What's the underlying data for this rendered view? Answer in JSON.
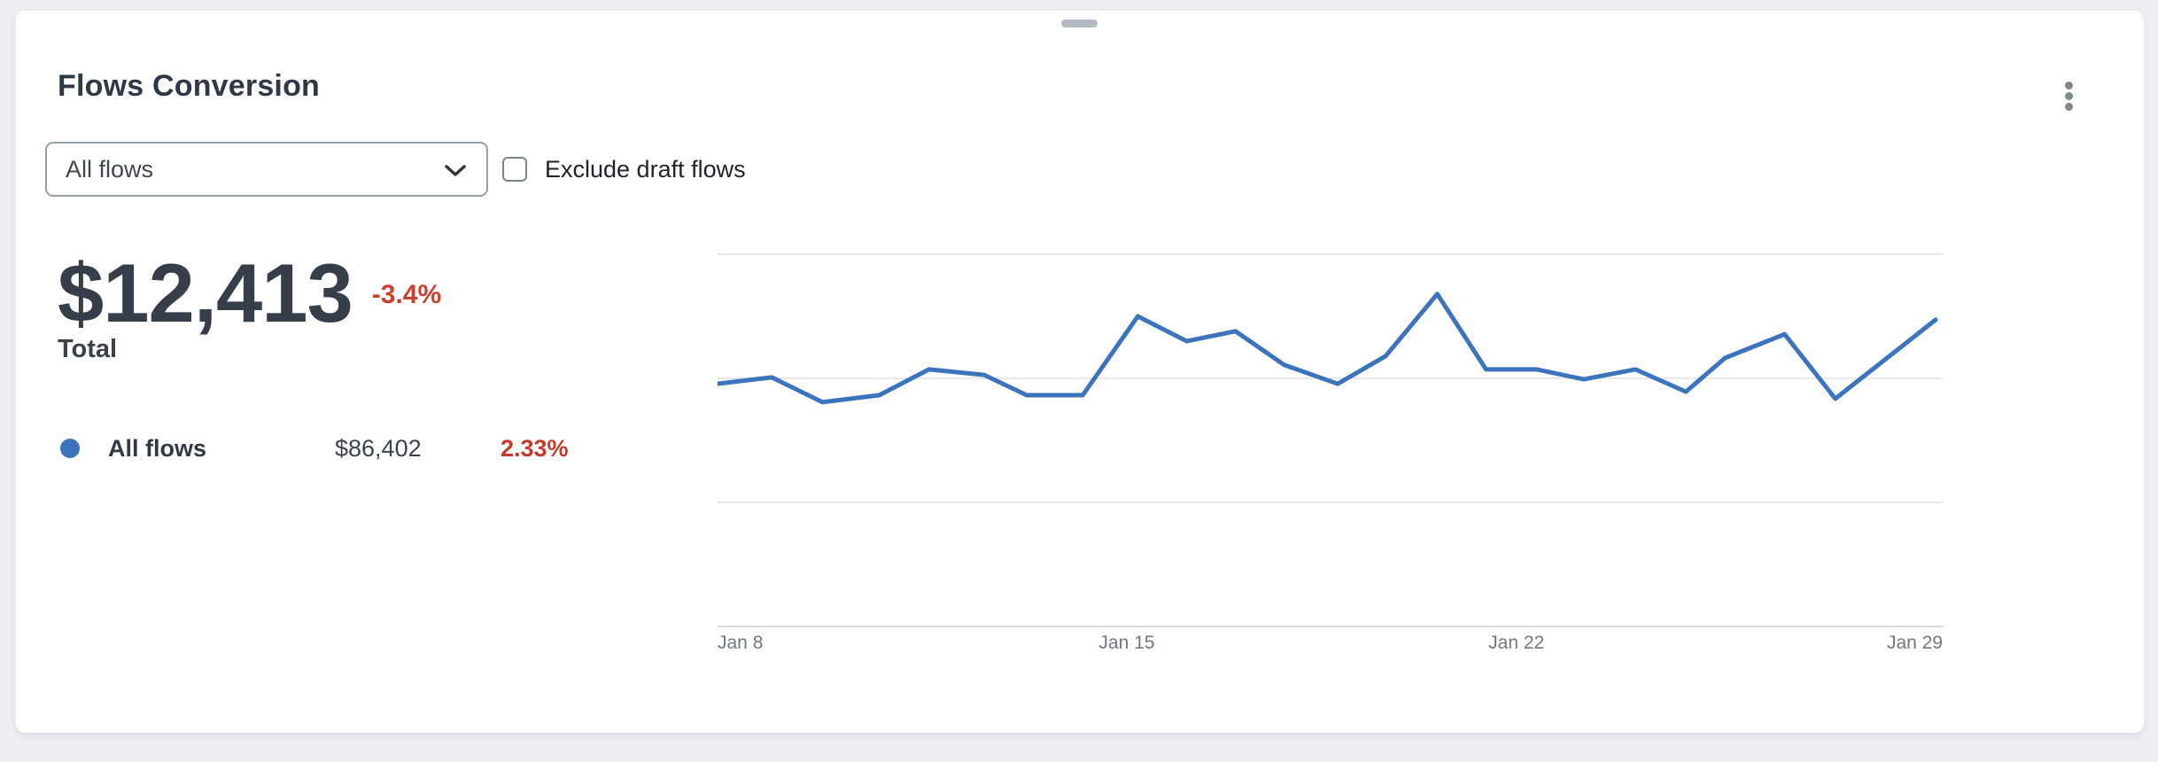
{
  "page": {
    "background": "#edeff2"
  },
  "widget": {
    "title": "Flows Conversion",
    "menu_icon": "kebab-vertical-icon",
    "controls": {
      "flow_select_value": "All flows",
      "checkbox_label": "Exclude draft flows",
      "checkbox_checked": false
    },
    "stat": {
      "total_value": "$12,413",
      "change": "-3.4%",
      "change_color": "#d03e2f",
      "label": "Total"
    },
    "legend": [
      {
        "name": "All flows",
        "value": "$86,402",
        "percent": "2.33%",
        "dot_color": "#3b74bd",
        "percent_color": "#c43b2b"
      }
    ]
  },
  "chart_data": {
    "type": "line",
    "title": "Flows Conversion over time",
    "series": [
      {
        "name": "All flows",
        "color": "#3b74bd",
        "x": [
          "Jan 7",
          "Jan 8",
          "Jan 9",
          "Jan 10",
          "Jan 11",
          "Jan 12",
          "Jan 13",
          "Jan 14",
          "Jan 15",
          "Jan 16",
          "Jan 17",
          "Jan 18",
          "Jan 19",
          "Jan 20",
          "Jan 21",
          "Jan 22",
          "Jan 23",
          "Jan 24",
          "Jan 25",
          "Jan 26",
          "Jan 27",
          "Jan 28",
          "Jan 29",
          "Jan 30"
        ],
        "values": [
          489,
          502,
          452,
          466,
          518,
          507,
          466,
          466,
          625,
          575,
          595,
          527,
          489,
          545,
          670,
          518,
          518,
          498,
          518,
          473,
          541,
          589,
          459,
          618
        ],
        "points_xf": [
          0,
          0.0445,
          0.0861,
          0.1327,
          0.1736,
          0.2188,
          0.2538,
          0.2998,
          0.345,
          0.3851,
          0.4252,
          0.4653,
          0.5091,
          0.5485,
          0.5908,
          0.6309,
          0.6725,
          0.7111,
          0.7535,
          0.795,
          0.8271,
          0.876,
          0.9176,
          1
        ]
      }
    ],
    "xlabel": "",
    "ylabel": "",
    "ylim": [
      0,
      780
    ],
    "gridline_values": [
      250,
      500,
      750
    ],
    "grid": true,
    "y_tick_labels_shown": false,
    "legend_position": "left-panel",
    "x_tick_labels": [
      {
        "label": "Jan 8",
        "xf": 0,
        "align": "left"
      },
      {
        "label": "Jan 15",
        "xf": 0.334,
        "align": "center"
      },
      {
        "label": "Jan 22",
        "xf": 0.652,
        "align": "center"
      },
      {
        "label": "Jan 29",
        "xf": 1,
        "align": "right"
      }
    ],
    "colors": {
      "gridline": "#e6e8eb",
      "axis_line": "#d8dbde",
      "tick_label": "#6e7782"
    }
  }
}
